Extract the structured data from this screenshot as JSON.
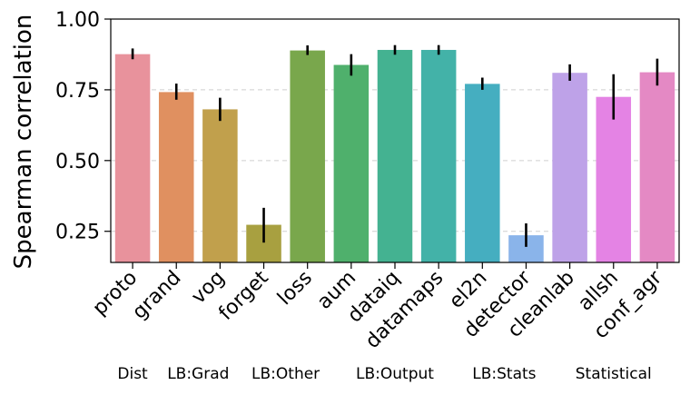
{
  "chart_data": {
    "type": "bar",
    "title": "",
    "xlabel": "",
    "ylabel": "Spearman correlation",
    "ylim": [
      0.14,
      1.0
    ],
    "yticks": [
      0.25,
      0.5,
      0.75,
      1.0
    ],
    "ytick_labels": [
      "0.25",
      "0.50",
      "0.75",
      "1.00"
    ],
    "grid": "horizontal dashed",
    "categories": [
      "proto",
      "grand",
      "vog",
      "forget",
      "loss",
      "aum",
      "dataiq",
      "datamaps",
      "el2n",
      "detector",
      "cleanlab",
      "allsh",
      "conf_agr"
    ],
    "values": [
      0.876,
      0.742,
      0.681,
      0.273,
      0.889,
      0.838,
      0.891,
      0.891,
      0.771,
      0.236,
      0.81,
      0.725,
      0.812
    ],
    "error_low": [
      0.858,
      0.715,
      0.64,
      0.21,
      0.873,
      0.8,
      0.874,
      0.874,
      0.75,
      0.195,
      0.782,
      0.645,
      0.765
    ],
    "error_high": [
      0.896,
      0.772,
      0.722,
      0.333,
      0.907,
      0.876,
      0.908,
      0.908,
      0.793,
      0.278,
      0.84,
      0.805,
      0.86
    ],
    "colors": [
      "#e8929c",
      "#e09060",
      "#c1a04c",
      "#a8a040",
      "#79a74c",
      "#4fb06c",
      "#44b291",
      "#43b2a8",
      "#45aec0",
      "#8ab4ea",
      "#bea2e8",
      "#e483e4",
      "#e489c4"
    ],
    "groups": [
      {
        "label": "Dist",
        "categories": [
          "proto"
        ]
      },
      {
        "label": "LB:Grad",
        "categories": [
          "grand",
          "vog"
        ]
      },
      {
        "label": "LB:Other",
        "categories": [
          "forget",
          "loss"
        ]
      },
      {
        "label": "LB:Output",
        "categories": [
          "aum",
          "dataiq",
          "datamaps"
        ]
      },
      {
        "label": "LB:Stats",
        "categories": [
          "el2n",
          "detector"
        ]
      },
      {
        "label": "Statistical",
        "categories": [
          "cleanlab",
          "allsh",
          "conf_agr"
        ]
      }
    ]
  }
}
